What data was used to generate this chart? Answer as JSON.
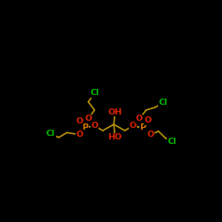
{
  "background_color": "#000000",
  "bond_color": "#b8900a",
  "atom_colors": {
    "O": "#dd2200",
    "P": "#dd7700",
    "Cl": "#00bb00",
    "C": "#b8900a"
  },
  "figsize": [
    2.5,
    2.5
  ],
  "dpi": 100
}
